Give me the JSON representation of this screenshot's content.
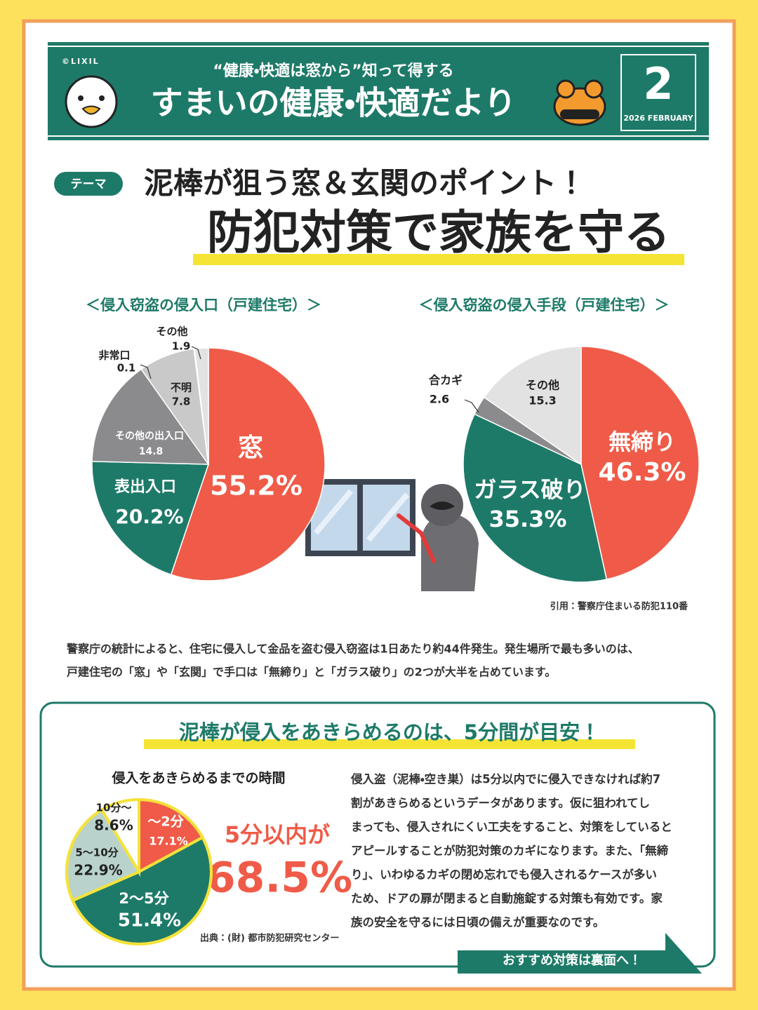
{
  "header": {
    "copyright": "©LIXIL",
    "tagline": "“健康・快適は窓から”知って得する",
    "title": "すまいの健康・快適だより",
    "issue_number": "2",
    "issue_date": "2026 FEBRUARY"
  },
  "theme": {
    "tag": "テーマ",
    "headline": "泥棒が狙う窓＆玄関のポイント！",
    "title": "防犯対策で家族を守る"
  },
  "chart_data": [
    {
      "type": "pie",
      "title": "＜侵入窃盗の侵入口（戸建住宅）＞",
      "categories": [
        "窓",
        "表出入口",
        "その他の出入口",
        "不明",
        "非常口",
        "その他"
      ],
      "values": [
        55.2,
        20.2,
        14.8,
        7.8,
        0.1,
        1.9
      ],
      "value_labels": [
        "55.2%",
        "20.2%",
        "14.8",
        "7.8",
        "0.1",
        "1.9"
      ],
      "colors": [
        "#ef5b48",
        "#1e7a68",
        "#8b8b8e",
        "#c9c9c9",
        "#e2e2e2",
        "#e2e2e2"
      ]
    },
    {
      "type": "pie",
      "title": "＜侵入窃盗の侵入手段（戸建住宅）＞",
      "categories": [
        "無締り",
        "ガラス破り",
        "合カギ",
        "その他"
      ],
      "values": [
        46.3,
        35.3,
        2.6,
        15.3
      ],
      "value_labels": [
        "46.3%",
        "35.3%",
        "2.6",
        "15.3"
      ],
      "colors": [
        "#ef5b48",
        "#1e7a68",
        "#8b8b8e",
        "#e2e2e2"
      ]
    },
    {
      "type": "pie",
      "title": "侵入をあきらめるまでの時間",
      "categories": [
        "〜2分",
        "2〜5分",
        "5〜10分",
        "10分〜"
      ],
      "values": [
        17.1,
        51.4,
        22.9,
        8.6
      ],
      "value_labels": [
        "17.1%",
        "51.4%",
        "22.9%",
        "8.6%"
      ],
      "colors": [
        "#ef5b48",
        "#1e7a68",
        "#b9d3cc",
        "#ffffff"
      ]
    }
  ],
  "source": "引用：警察庁住まいる防犯110番",
  "intro": [
    "警察庁の統計によると、住宅に侵入して金品を盗む侵入窃盗は1日あたり約44件発生。発生場所で最も多いのは、",
    "戸建住宅の「窓」や「玄関」で手口は「無締り」と「ガラス破り」の2つが大半を占めています。"
  ],
  "box": {
    "title": "泥棒が侵入をあきらめるのは、5分間が目安！",
    "highlight_label": "5分以内が",
    "highlight_value": "68.5%",
    "body": [
      "侵入盗（泥棒・空き巣）は5分以内でに侵入できなければ約7",
      "割があきらめるというデータがあります。仮に狙われてし",
      "まっても、侵入されにくい工夫をすること、対策をしていると",
      "アピールすることが防犯対策のカギになります。また、「無締",
      "り」、いわゆるカギの閉め忘れでも侵入されるケースが多い",
      "ため、ドアの扉が閉まると自動施錠する対策も有効です。家",
      "族の安全を守るには日頃の備えが重要なのです。"
    ],
    "source": "出典：(財) 都市防犯研究センター",
    "cta": "おすすめ対策は裏面へ！"
  }
}
